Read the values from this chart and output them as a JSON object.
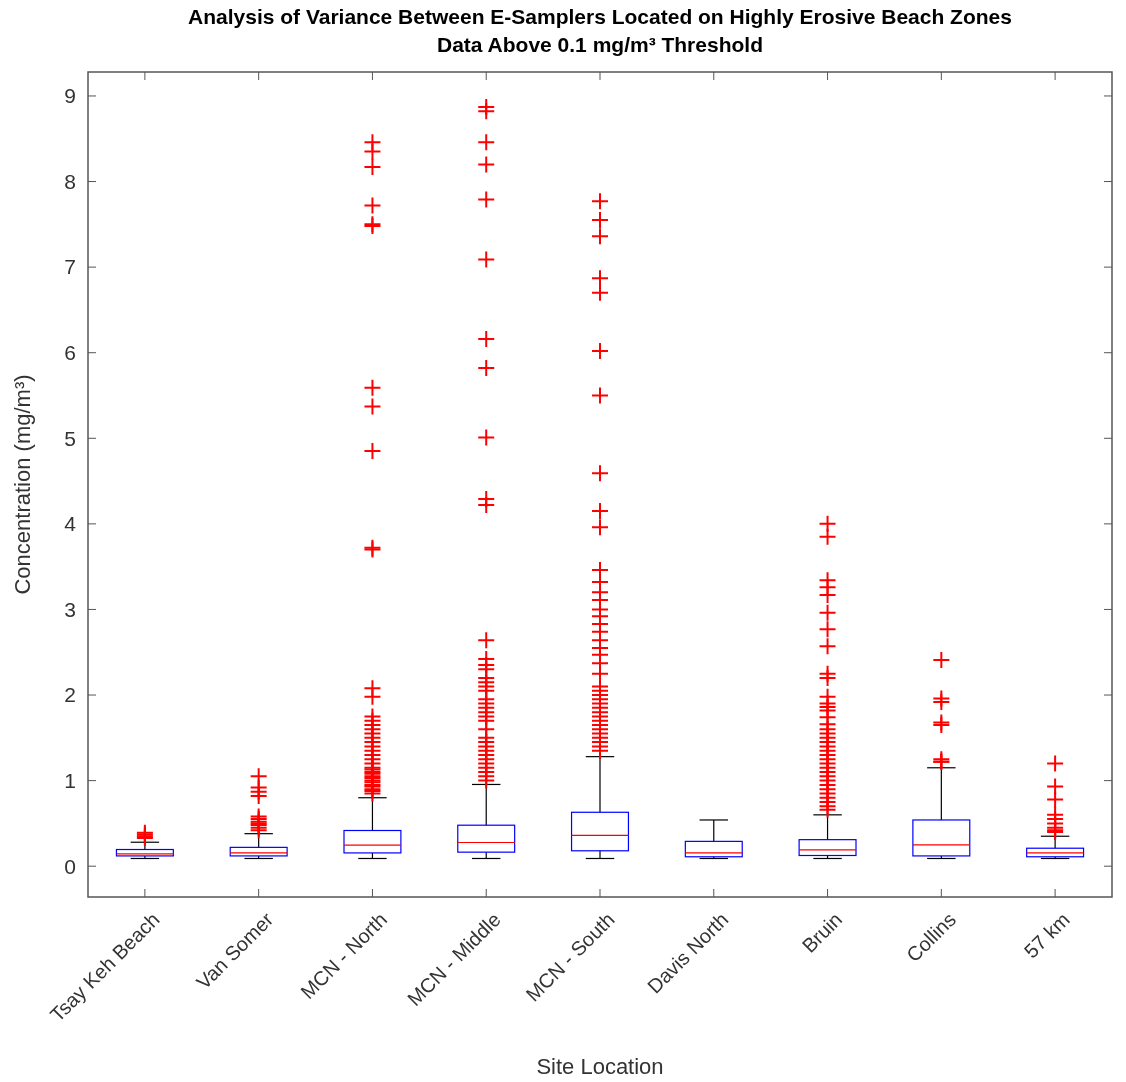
{
  "chart_data": {
    "type": "box",
    "title": "Analysis of Variance Between E-Samplers Located on Highly Erosive Beach Zones",
    "subtitle": "Data Above 0.1 mg/m³ Threshold",
    "xlabel": "Site Location",
    "ylabel": "Concentration (mg/m³)",
    "categories": [
      "Tsay Keh Beach",
      "Van Somer",
      "MCN - North",
      "MCN - Middle",
      "MCN - South",
      "Davis North",
      "Bruin",
      "Collins",
      "57 km"
    ],
    "ylim": [
      -0.36,
      9.28
    ],
    "yticks": [
      0,
      1,
      2,
      3,
      4,
      5,
      6,
      7,
      8,
      9
    ],
    "grid": false,
    "marker": "cross",
    "series": [
      {
        "color": "#0000ff",
        "boxes": [
          {
            "low": 0.09,
            "q1": 0.12,
            "median": 0.144,
            "q3": 0.195,
            "high": 0.28,
            "outliers": [
              0.33,
              0.35,
              0.37,
              0.39
            ]
          },
          {
            "low": 0.09,
            "q1": 0.12,
            "median": 0.155,
            "q3": 0.22,
            "high": 0.38,
            "outliers": [
              0.42,
              0.45,
              0.48,
              0.5,
              0.52,
              0.55,
              0.58,
              0.82,
              0.87,
              0.92,
              1.05
            ]
          },
          {
            "low": 0.09,
            "q1": 0.155,
            "median": 0.245,
            "q3": 0.417,
            "high": 0.8,
            "outliers": [
              0.85,
              0.88,
              0.9,
              0.93,
              0.95,
              0.98,
              1.0,
              1.03,
              1.05,
              1.08,
              1.1,
              1.13,
              1.15,
              1.2,
              1.25,
              1.3,
              1.35,
              1.4,
              1.45,
              1.5,
              1.55,
              1.6,
              1.65,
              1.7,
              1.75,
              1.98,
              2.08,
              3.7,
              3.72,
              4.85,
              5.37,
              5.59,
              7.48,
              7.5,
              7.72,
              8.17,
              8.35,
              8.46
            ]
          },
          {
            "low": 0.09,
            "q1": 0.164,
            "median": 0.277,
            "q3": 0.479,
            "high": 0.955,
            "outliers": [
              1.0,
              1.05,
              1.1,
              1.15,
              1.2,
              1.25,
              1.3,
              1.35,
              1.4,
              1.45,
              1.5,
              1.6,
              1.7,
              1.75,
              1.8,
              1.85,
              1.9,
              1.95,
              2.05,
              2.1,
              2.15,
              2.2,
              2.3,
              2.35,
              2.42,
              2.64,
              4.22,
              4.29,
              5.01,
              5.82,
              6.16,
              7.09,
              7.79,
              8.2,
              8.46,
              8.82,
              8.87
            ]
          },
          {
            "low": 0.09,
            "q1": 0.18,
            "median": 0.36,
            "q3": 0.63,
            "high": 1.28,
            "outliers": [
              1.35,
              1.4,
              1.45,
              1.5,
              1.55,
              1.6,
              1.65,
              1.7,
              1.75,
              1.8,
              1.85,
              1.9,
              1.95,
              2.0,
              2.05,
              2.1,
              2.25,
              2.37,
              2.47,
              2.55,
              2.64,
              2.74,
              2.83,
              2.92,
              3.0,
              3.11,
              3.2,
              3.32,
              3.46,
              3.96,
              4.15,
              4.59,
              5.5,
              6.02,
              6.7,
              6.87,
              7.36,
              7.55,
              7.77
            ]
          },
          {
            "low": 0.09,
            "q1": 0.11,
            "median": 0.155,
            "q3": 0.29,
            "high": 0.54
          },
          {
            "low": 0.09,
            "q1": 0.125,
            "median": 0.19,
            "q3": 0.31,
            "high": 0.6,
            "outliers": [
              0.66,
              0.7,
              0.75,
              0.8,
              0.85,
              0.9,
              0.95,
              1.0,
              1.05,
              1.1,
              1.15,
              1.2,
              1.25,
              1.3,
              1.35,
              1.4,
              1.45,
              1.5,
              1.55,
              1.6,
              1.66,
              1.74,
              1.82,
              1.86,
              1.9,
              1.98,
              2.2,
              2.25,
              2.57,
              2.77,
              2.96,
              3.17,
              3.26,
              3.34,
              3.85,
              4.0
            ]
          },
          {
            "low": 0.09,
            "q1": 0.12,
            "median": 0.25,
            "q3": 0.54,
            "high": 1.15,
            "outliers": [
              1.22,
              1.22,
              1.25,
              1.65,
              1.68,
              1.92,
              1.96,
              2.41
            ]
          },
          {
            "low": 0.09,
            "q1": 0.11,
            "median": 0.155,
            "q3": 0.21,
            "high": 0.35,
            "outliers": [
              0.4,
              0.42,
              0.45,
              0.5,
              0.55,
              0.6,
              0.78,
              0.93,
              1.2
            ]
          }
        ]
      }
    ]
  }
}
